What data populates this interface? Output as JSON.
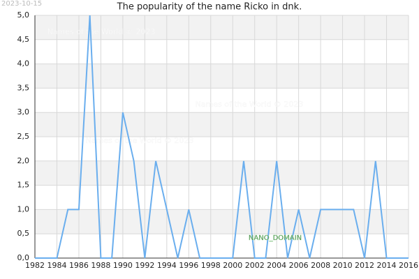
{
  "chart_data": {
    "type": "line",
    "title": "The popularity of the name Ricko in dnk.",
    "date_stamp": "2023-10-15",
    "watermarks": [
      "Names of the World © 2023",
      "Names of the World © 2023",
      "Names of the World © 2023"
    ],
    "badge": "NANO_DOMAIN",
    "x": [
      1982,
      1983,
      1984,
      1985,
      1986,
      1987,
      1988,
      1989,
      1990,
      1991,
      1992,
      1993,
      1994,
      1995,
      1996,
      1997,
      1998,
      1999,
      2000,
      2001,
      2002,
      2003,
      2004,
      2005,
      2006,
      2007,
      2008,
      2009,
      2010,
      2011,
      2012,
      2013,
      2014,
      2015,
      2016
    ],
    "values": [
      0,
      0,
      0,
      1,
      1,
      5,
      0,
      0,
      3,
      2,
      0,
      2,
      1,
      0,
      1,
      0,
      0,
      0,
      0,
      2,
      0,
      0,
      2,
      0,
      1,
      0,
      1,
      1,
      1,
      1,
      0,
      2,
      0,
      0,
      0
    ],
    "color": "#6aaeee",
    "xlim": [
      1982,
      2016
    ],
    "xticks": [
      1982,
      1984,
      1986,
      1988,
      1990,
      1992,
      1994,
      1996,
      1998,
      2000,
      2002,
      2004,
      2006,
      2008,
      2010,
      2012,
      2014,
      2016
    ],
    "ylim": [
      0,
      5
    ],
    "yticks": [
      {
        "value": 0,
        "label": "0,0"
      },
      {
        "value": 0.5,
        "label": "0,5"
      },
      {
        "value": 1,
        "label": "1,0"
      },
      {
        "value": 1.5,
        "label": "1,5"
      },
      {
        "value": 2,
        "label": "2,0"
      },
      {
        "value": 2.5,
        "label": "2,5"
      },
      {
        "value": 3,
        "label": "3,0"
      },
      {
        "value": 3.5,
        "label": "3,5"
      },
      {
        "value": 4,
        "label": "4,0"
      },
      {
        "value": 4.5,
        "label": "4,5"
      },
      {
        "value": 5,
        "label": "5,0"
      }
    ],
    "grid": true
  }
}
